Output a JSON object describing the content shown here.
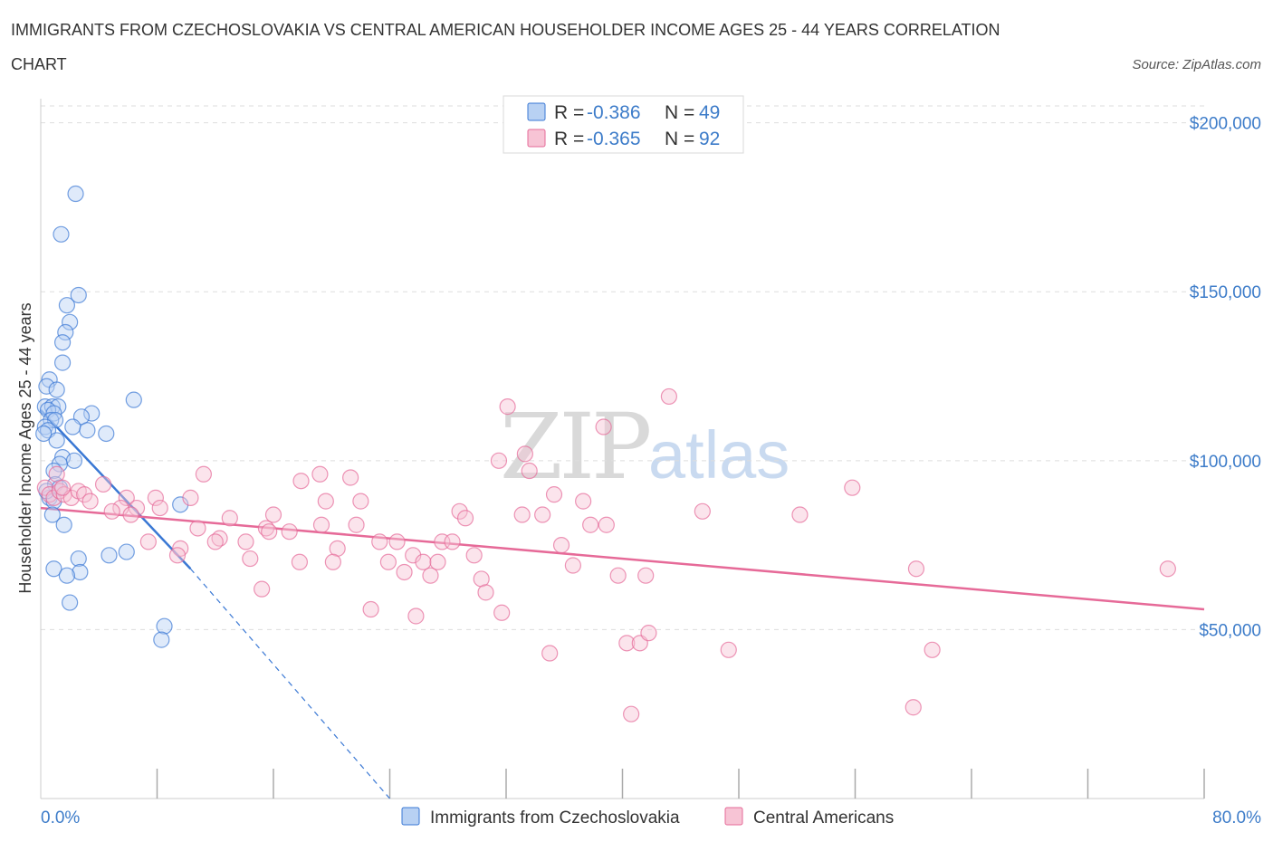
{
  "title_line1": "IMMIGRANTS FROM CZECHOSLOVAKIA VS CENTRAL AMERICAN HOUSEHOLDER INCOME AGES 25 - 44 YEARS CORRELATION",
  "title_line2": "CHART",
  "source": "Source: ZipAtlas.com",
  "watermark": {
    "zip": "ZIP",
    "atlas": "atlas"
  },
  "colors": {
    "blue": "#3a78d4",
    "blue_fill": "#b8d1f3",
    "pink": "#e66a98",
    "pink_fill": "#f7c4d5",
    "grid": "#dddddd",
    "tick_text": "#3d7cc9"
  },
  "legend_top": [
    {
      "r_label": "R =",
      "r_value": "-0.386",
      "n_label": "N =",
      "n_value": "49",
      "color": "blue"
    },
    {
      "r_label": "R =",
      "r_value": "-0.365",
      "n_label": "N =",
      "n_value": "92",
      "color": "pink"
    }
  ],
  "legend_bottom": [
    {
      "label": "Immigrants from Czechoslovakia",
      "color": "blue"
    },
    {
      "label": "Central Americans",
      "color": "pink"
    }
  ],
  "chart_data": {
    "type": "scatter",
    "title": "IMMIGRANTS FROM CZECHOSLOVAKIA VS CENTRAL AMERICAN HOUSEHOLDER INCOME AGES 25 - 44 YEARS CORRELATION CHART",
    "xlabel": "",
    "ylabel": "Householder Income Ages 25 - 44 years",
    "xlim": [
      0,
      80
    ],
    "ylim": [
      0,
      205000
    ],
    "x_tick_labels": [
      {
        "value": 0,
        "label": "0.0%"
      },
      {
        "value": 80,
        "label": "80.0%"
      }
    ],
    "y_ticks": [
      {
        "value": 50000,
        "label": "$50,000"
      },
      {
        "value": 100000,
        "label": "$100,000"
      },
      {
        "value": 150000,
        "label": "$150,000"
      },
      {
        "value": 200000,
        "label": "$200,000"
      }
    ],
    "x_minor_ticks": [
      8,
      16,
      24,
      32,
      40,
      48,
      56,
      64,
      72,
      80
    ],
    "grid": true,
    "legend_position": "top-center",
    "series": [
      {
        "name": "Immigrants from Czechoslovakia",
        "color": "blue",
        "points": [
          [
            2.4,
            179000
          ],
          [
            1.4,
            167000
          ],
          [
            2.6,
            149000
          ],
          [
            1.8,
            146000
          ],
          [
            2.0,
            141000
          ],
          [
            1.7,
            138000
          ],
          [
            1.5,
            135000
          ],
          [
            1.5,
            129000
          ],
          [
            0.6,
            124000
          ],
          [
            0.4,
            122000
          ],
          [
            1.1,
            121000
          ],
          [
            0.3,
            116000
          ],
          [
            0.8,
            116000
          ],
          [
            1.2,
            116000
          ],
          [
            0.5,
            115000
          ],
          [
            0.9,
            114000
          ],
          [
            6.4,
            118000
          ],
          [
            3.5,
            114000
          ],
          [
            2.8,
            113000
          ],
          [
            0.7,
            112000
          ],
          [
            1.0,
            112000
          ],
          [
            0.3,
            110000
          ],
          [
            2.2,
            110000
          ],
          [
            3.2,
            109000
          ],
          [
            0.5,
            109000
          ],
          [
            4.5,
            108000
          ],
          [
            1.1,
            106000
          ],
          [
            0.2,
            108000
          ],
          [
            1.5,
            101000
          ],
          [
            2.3,
            100000
          ],
          [
            1.3,
            99000
          ],
          [
            0.9,
            97000
          ],
          [
            1.0,
            93000
          ],
          [
            0.6,
            89000
          ],
          [
            0.9,
            88000
          ],
          [
            9.6,
            87000
          ],
          [
            0.8,
            84000
          ],
          [
            1.6,
            81000
          ],
          [
            5.9,
            73000
          ],
          [
            4.7,
            72000
          ],
          [
            2.6,
            71000
          ],
          [
            0.9,
            68000
          ],
          [
            2.7,
            67000
          ],
          [
            1.8,
            66000
          ],
          [
            2.0,
            58000
          ],
          [
            8.5,
            51000
          ],
          [
            8.3,
            47000
          ],
          [
            0.4,
            91000
          ],
          [
            1.3,
            92000
          ]
        ]
      },
      {
        "name": "Central Americans",
        "color": "pink",
        "points": [
          [
            0.3,
            92000
          ],
          [
            0.6,
            90000
          ],
          [
            0.9,
            89000
          ],
          [
            1.3,
            91000
          ],
          [
            1.6,
            90000
          ],
          [
            2.1,
            89000
          ],
          [
            2.6,
            91000
          ],
          [
            3.0,
            90000
          ],
          [
            3.4,
            88000
          ],
          [
            1.1,
            96000
          ],
          [
            1.5,
            92000
          ],
          [
            4.3,
            93000
          ],
          [
            5.9,
            89000
          ],
          [
            5.5,
            86000
          ],
          [
            4.9,
            85000
          ],
          [
            6.6,
            86000
          ],
          [
            6.2,
            84000
          ],
          [
            7.9,
            89000
          ],
          [
            8.2,
            86000
          ],
          [
            7.4,
            76000
          ],
          [
            10.3,
            89000
          ],
          [
            11.2,
            96000
          ],
          [
            10.8,
            80000
          ],
          [
            12.3,
            77000
          ],
          [
            13.0,
            83000
          ],
          [
            12.0,
            76000
          ],
          [
            14.1,
            76000
          ],
          [
            14.4,
            71000
          ],
          [
            15.5,
            80000
          ],
          [
            16.0,
            84000
          ],
          [
            15.7,
            79000
          ],
          [
            17.1,
            79000
          ],
          [
            17.8,
            70000
          ],
          [
            15.2,
            62000
          ],
          [
            9.6,
            74000
          ],
          [
            9.4,
            72000
          ],
          [
            17.9,
            94000
          ],
          [
            19.3,
            81000
          ],
          [
            19.6,
            88000
          ],
          [
            19.2,
            96000
          ],
          [
            20.4,
            74000
          ],
          [
            20.1,
            70000
          ],
          [
            21.3,
            95000
          ],
          [
            21.7,
            81000
          ],
          [
            22.0,
            88000
          ],
          [
            22.7,
            56000
          ],
          [
            23.3,
            76000
          ],
          [
            23.9,
            70000
          ],
          [
            24.5,
            76000
          ],
          [
            25.0,
            67000
          ],
          [
            25.6,
            72000
          ],
          [
            25.8,
            54000
          ],
          [
            26.3,
            70000
          ],
          [
            26.8,
            66000
          ],
          [
            27.3,
            70000
          ],
          [
            27.6,
            76000
          ],
          [
            28.3,
            76000
          ],
          [
            28.8,
            85000
          ],
          [
            29.2,
            83000
          ],
          [
            29.8,
            72000
          ],
          [
            30.3,
            65000
          ],
          [
            30.6,
            61000
          ],
          [
            31.5,
            100000
          ],
          [
            31.7,
            55000
          ],
          [
            32.1,
            116000
          ],
          [
            33.3,
            102000
          ],
          [
            33.6,
            97000
          ],
          [
            33.1,
            84000
          ],
          [
            34.5,
            84000
          ],
          [
            35.0,
            43000
          ],
          [
            35.3,
            90000
          ],
          [
            35.8,
            75000
          ],
          [
            36.6,
            69000
          ],
          [
            37.3,
            88000
          ],
          [
            37.8,
            81000
          ],
          [
            38.7,
            110000
          ],
          [
            38.9,
            81000
          ],
          [
            39.7,
            66000
          ],
          [
            40.3,
            46000
          ],
          [
            40.6,
            25000
          ],
          [
            41.2,
            46000
          ],
          [
            41.6,
            66000
          ],
          [
            41.8,
            49000
          ],
          [
            43.2,
            119000
          ],
          [
            45.5,
            85000
          ],
          [
            47.3,
            44000
          ],
          [
            52.2,
            84000
          ],
          [
            55.8,
            92000
          ],
          [
            60.0,
            27000
          ],
          [
            60.2,
            68000
          ],
          [
            61.3,
            44000
          ],
          [
            77.5,
            68000
          ]
        ]
      }
    ],
    "trendlines": [
      {
        "series": "Immigrants from Czechoslovakia",
        "solid": [
          [
            0,
            115000
          ],
          [
            10.3,
            68000
          ]
        ],
        "dashed": [
          [
            10.3,
            68000
          ],
          [
            24.0,
            0
          ]
        ]
      },
      {
        "series": "Central Americans",
        "solid": [
          [
            0,
            86000
          ],
          [
            80,
            56000
          ]
        ]
      }
    ]
  }
}
